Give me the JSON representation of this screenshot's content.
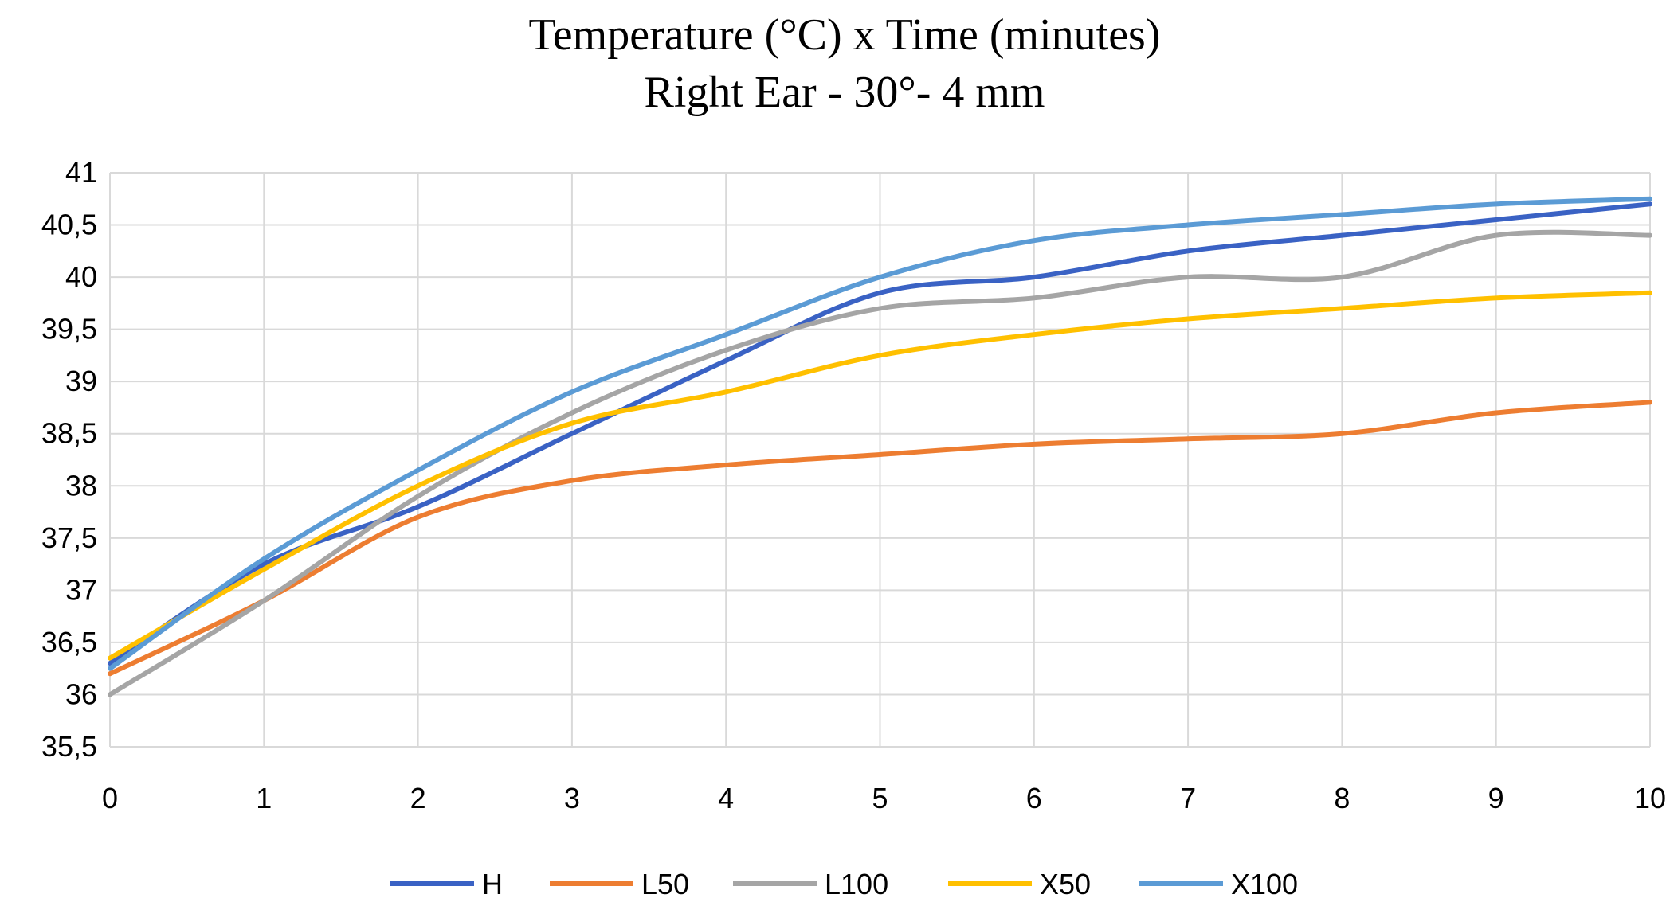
{
  "chart_data": {
    "type": "line",
    "title": "Temperature (°C)  x Time (minutes)",
    "subtitle": "Right Ear - 30°- 4 mm",
    "xlabel": "",
    "ylabel": "",
    "x": [
      0,
      1,
      2,
      3,
      4,
      5,
      6,
      7,
      8,
      9,
      10
    ],
    "xlim": [
      0,
      10
    ],
    "ylim": [
      35.5,
      41
    ],
    "xticks": [
      "0",
      "1",
      "2",
      "3",
      "4",
      "5",
      "6",
      "7",
      "8",
      "9",
      "10"
    ],
    "yticks": [
      35.5,
      36,
      36.5,
      37,
      37.5,
      38,
      38.5,
      39,
      39.5,
      40,
      40.5,
      41
    ],
    "ytick_labels": [
      "35,5",
      "36",
      "36,5",
      "37",
      "37,5",
      "38",
      "38,5",
      "39",
      "39,5",
      "40",
      "40,5",
      "41"
    ],
    "grid": true,
    "smooth": true,
    "legend_position": "bottom",
    "series": [
      {
        "name": "H",
        "color": "#3a62c4",
        "values": [
          36.3,
          37.25,
          37.8,
          38.5,
          39.2,
          39.85,
          40.0,
          40.25,
          40.4,
          40.55,
          40.7
        ]
      },
      {
        "name": "L50",
        "color": "#ed7d31",
        "values": [
          36.2,
          36.9,
          37.7,
          38.05,
          38.2,
          38.3,
          38.4,
          38.45,
          38.5,
          38.7,
          38.8
        ]
      },
      {
        "name": "L100",
        "color": "#a5a5a5",
        "values": [
          36.0,
          36.9,
          37.9,
          38.7,
          39.3,
          39.7,
          39.8,
          40.0,
          40.0,
          40.4,
          40.4
        ]
      },
      {
        "name": "X50",
        "color": "#ffc000",
        "values": [
          36.35,
          37.2,
          38.0,
          38.6,
          38.9,
          39.25,
          39.45,
          39.6,
          39.7,
          39.8,
          39.85
        ]
      },
      {
        "name": "X100",
        "color": "#5b9bd5",
        "values": [
          36.25,
          37.3,
          38.15,
          38.9,
          39.45,
          40.0,
          40.35,
          40.5,
          40.6,
          40.7,
          40.75
        ]
      }
    ]
  }
}
